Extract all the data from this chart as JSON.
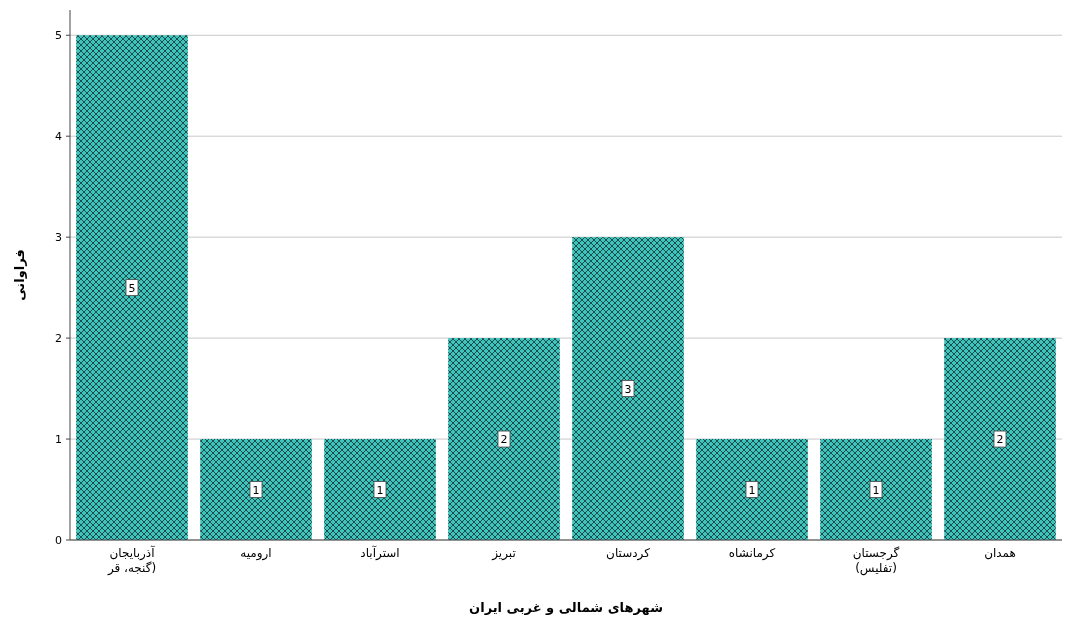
{
  "chart_data": {
    "type": "bar",
    "xlabel": "شهرهای شمالی و غربی ایران",
    "ylabel": "فراوانی",
    "categories": [
      "آذربایجان\n(گنجه، قر",
      "ارومیه",
      "استرآباد",
      "تبریز",
      "کردستان",
      "کرمانشاه",
      "گرجستان\n(تفلیس)",
      "همدان"
    ],
    "values": [
      5,
      1,
      1,
      2,
      3,
      1,
      1,
      2
    ],
    "color": "#3ec4bd",
    "ylim": [
      0,
      5.25
    ],
    "yticks": [
      0,
      1,
      2,
      3,
      4,
      5
    ],
    "grid": "y",
    "data_labels": true
  }
}
